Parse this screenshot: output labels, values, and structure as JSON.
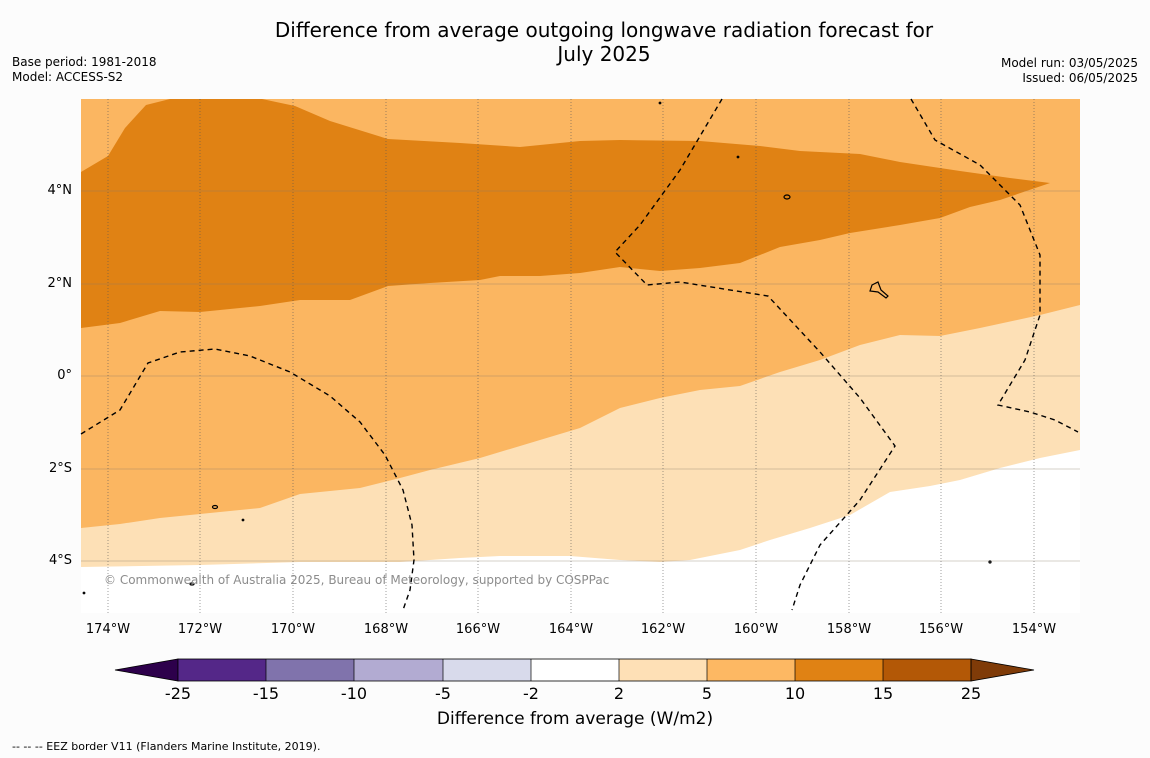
{
  "header": {
    "title_line1": "Difference from average outgoing longwave radiation forecast for",
    "title_line2": "July 2025",
    "base_period": "Base period: 1981-2018",
    "model": "Model: ACCESS-S2",
    "model_run": "Model run: 03/05/2025",
    "issued": "Issued: 06/05/2025"
  },
  "map": {
    "copyright": "© Commonwealth of Australia 2025, Bureau of Meteorology, supported by COSPPac",
    "lat_labels": [
      "4°N",
      "2°N",
      "0°",
      "2°S",
      "4°S"
    ],
    "lon_labels": [
      "174°W",
      "172°W",
      "170°W",
      "168°W",
      "166°W",
      "164°W",
      "162°W",
      "160°W",
      "158°W",
      "156°W",
      "154°W"
    ],
    "colors": {
      "2_5": "#fde0b6",
      "5_10": "#fbb661",
      "10_15": "#e08214",
      "land": "#000000"
    }
  },
  "colorbar": {
    "ticks": [
      "-25",
      "-15",
      "-10",
      "-5",
      "-2",
      "2",
      "5",
      "10",
      "15",
      "25"
    ],
    "colors": [
      "#2d004b",
      "#542788",
      "#8073ac",
      "#b2abd2",
      "#d8daeb",
      "#ffffff",
      "#fee0b6",
      "#fdb863",
      "#e08214",
      "#b35806",
      "#7f3b08"
    ],
    "label": "Difference from average (W/m2)"
  },
  "footer": {
    "eez_note": "--  --  -- EEZ border V11 (Flanders Marine Institute, 2019)."
  }
}
